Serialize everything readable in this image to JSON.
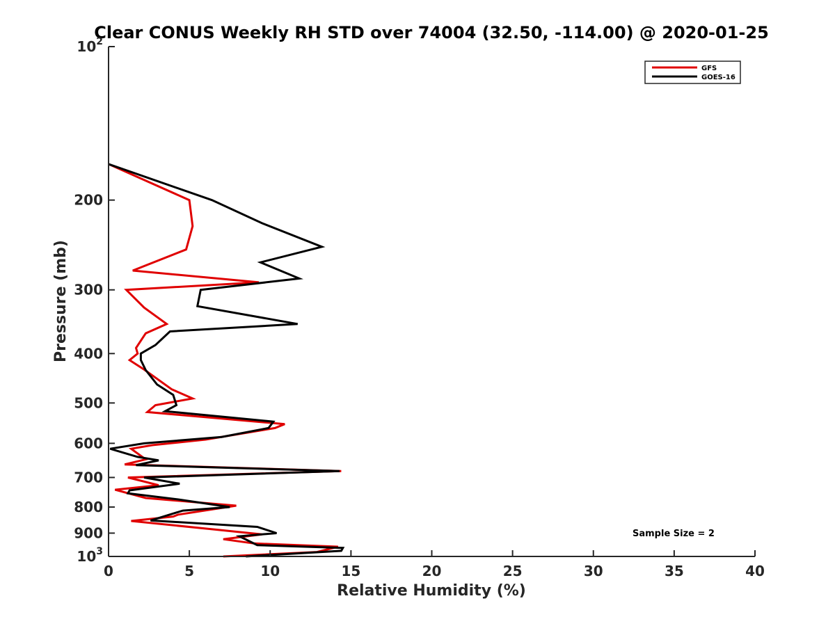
{
  "chart_data": {
    "type": "line",
    "title": "Clear CONUS Weekly RH STD over 74004 (32.50, -114.00) @ 2020-01-25",
    "xlabel": "Relative Humidity (%)",
    "ylabel": "Pressure (mb)",
    "xlim": [
      0,
      40
    ],
    "ylim": [
      100,
      1000
    ],
    "y_scale": "log",
    "y_reversed": true,
    "x_ticks": [
      0,
      5,
      10,
      15,
      20,
      25,
      30,
      35,
      40
    ],
    "x_tick_labels": [
      "0",
      "5",
      "10",
      "15",
      "20",
      "25",
      "30",
      "35",
      "40"
    ],
    "y_ticks": [
      200,
      300,
      400,
      500,
      600,
      700,
      800,
      900
    ],
    "y_tick_labels": [
      "200",
      "300",
      "400",
      "500",
      "600",
      "700",
      "800",
      "900"
    ],
    "y_end_labels": [
      {
        "value": 100,
        "base": "10",
        "exp": "2"
      },
      {
        "value": 1000,
        "base": "10",
        "exp": "3"
      }
    ],
    "grid": false,
    "legend_position": "top-right",
    "series": [
      {
        "name": "GFS",
        "color": "#e00000",
        "points": [
          [
            0,
            170
          ],
          [
            5.0,
            200
          ],
          [
            5.2,
            225
          ],
          [
            4.8,
            250
          ],
          [
            1.5,
            275
          ],
          [
            9.3,
            290
          ],
          [
            1.1,
            300
          ],
          [
            2.2,
            325
          ],
          [
            3.6,
            350
          ],
          [
            2.3,
            365
          ],
          [
            1.7,
            390
          ],
          [
            1.8,
            400
          ],
          [
            1.3,
            412
          ],
          [
            2.2,
            430
          ],
          [
            3.9,
            470
          ],
          [
            5.2,
            490
          ],
          [
            2.9,
            505
          ],
          [
            2.4,
            521
          ],
          [
            10.9,
            550
          ],
          [
            10.3,
            560
          ],
          [
            6.0,
            590
          ],
          [
            2.7,
            605
          ],
          [
            1.4,
            615
          ],
          [
            2.3,
            645
          ],
          [
            1.0,
            660
          ],
          [
            14.4,
            680
          ],
          [
            1.2,
            700
          ],
          [
            3.1,
            725
          ],
          [
            0.4,
            740
          ],
          [
            2.3,
            768
          ],
          [
            7.9,
            795
          ],
          [
            4.3,
            828
          ],
          [
            4.0,
            835
          ],
          [
            1.4,
            852
          ],
          [
            9.5,
            905
          ],
          [
            7.1,
            925
          ],
          [
            9.0,
            943
          ],
          [
            14.2,
            957
          ],
          [
            12.9,
            980
          ],
          [
            7.1,
            1000
          ]
        ]
      },
      {
        "name": "GOES-16",
        "color": "#000000",
        "points": [
          [
            0,
            170
          ],
          [
            6.4,
            200
          ],
          [
            9.5,
            222
          ],
          [
            13.2,
            247
          ],
          [
            9.4,
            265
          ],
          [
            11.8,
            285
          ],
          [
            5.7,
            300
          ],
          [
            5.5,
            323
          ],
          [
            11.7,
            350
          ],
          [
            3.8,
            362
          ],
          [
            2.9,
            385
          ],
          [
            2.0,
            400
          ],
          [
            2.0,
            412
          ],
          [
            2.3,
            431
          ],
          [
            3.0,
            460
          ],
          [
            4.0,
            482
          ],
          [
            4.2,
            505
          ],
          [
            3.5,
            519
          ],
          [
            10.2,
            544
          ],
          [
            9.9,
            560
          ],
          [
            7.0,
            583
          ],
          [
            2.2,
            600
          ],
          [
            0.1,
            615
          ],
          [
            1.8,
            638
          ],
          [
            3.1,
            648
          ],
          [
            1.7,
            662
          ],
          [
            14.3,
            680
          ],
          [
            2.2,
            700
          ],
          [
            4.4,
            720
          ],
          [
            1.3,
            742
          ],
          [
            1.2,
            752
          ],
          [
            4.3,
            773
          ],
          [
            7.5,
            800
          ],
          [
            4.6,
            813
          ],
          [
            2.6,
            850
          ],
          [
            9.2,
            875
          ],
          [
            10.4,
            900
          ],
          [
            8.1,
            913
          ],
          [
            9.2,
            950
          ],
          [
            14.5,
            962
          ],
          [
            14.4,
            975
          ],
          [
            8.5,
            1000
          ]
        ]
      }
    ],
    "annotations": [
      {
        "text": "Sample Size = 2",
        "position": "bottom-right"
      }
    ]
  }
}
